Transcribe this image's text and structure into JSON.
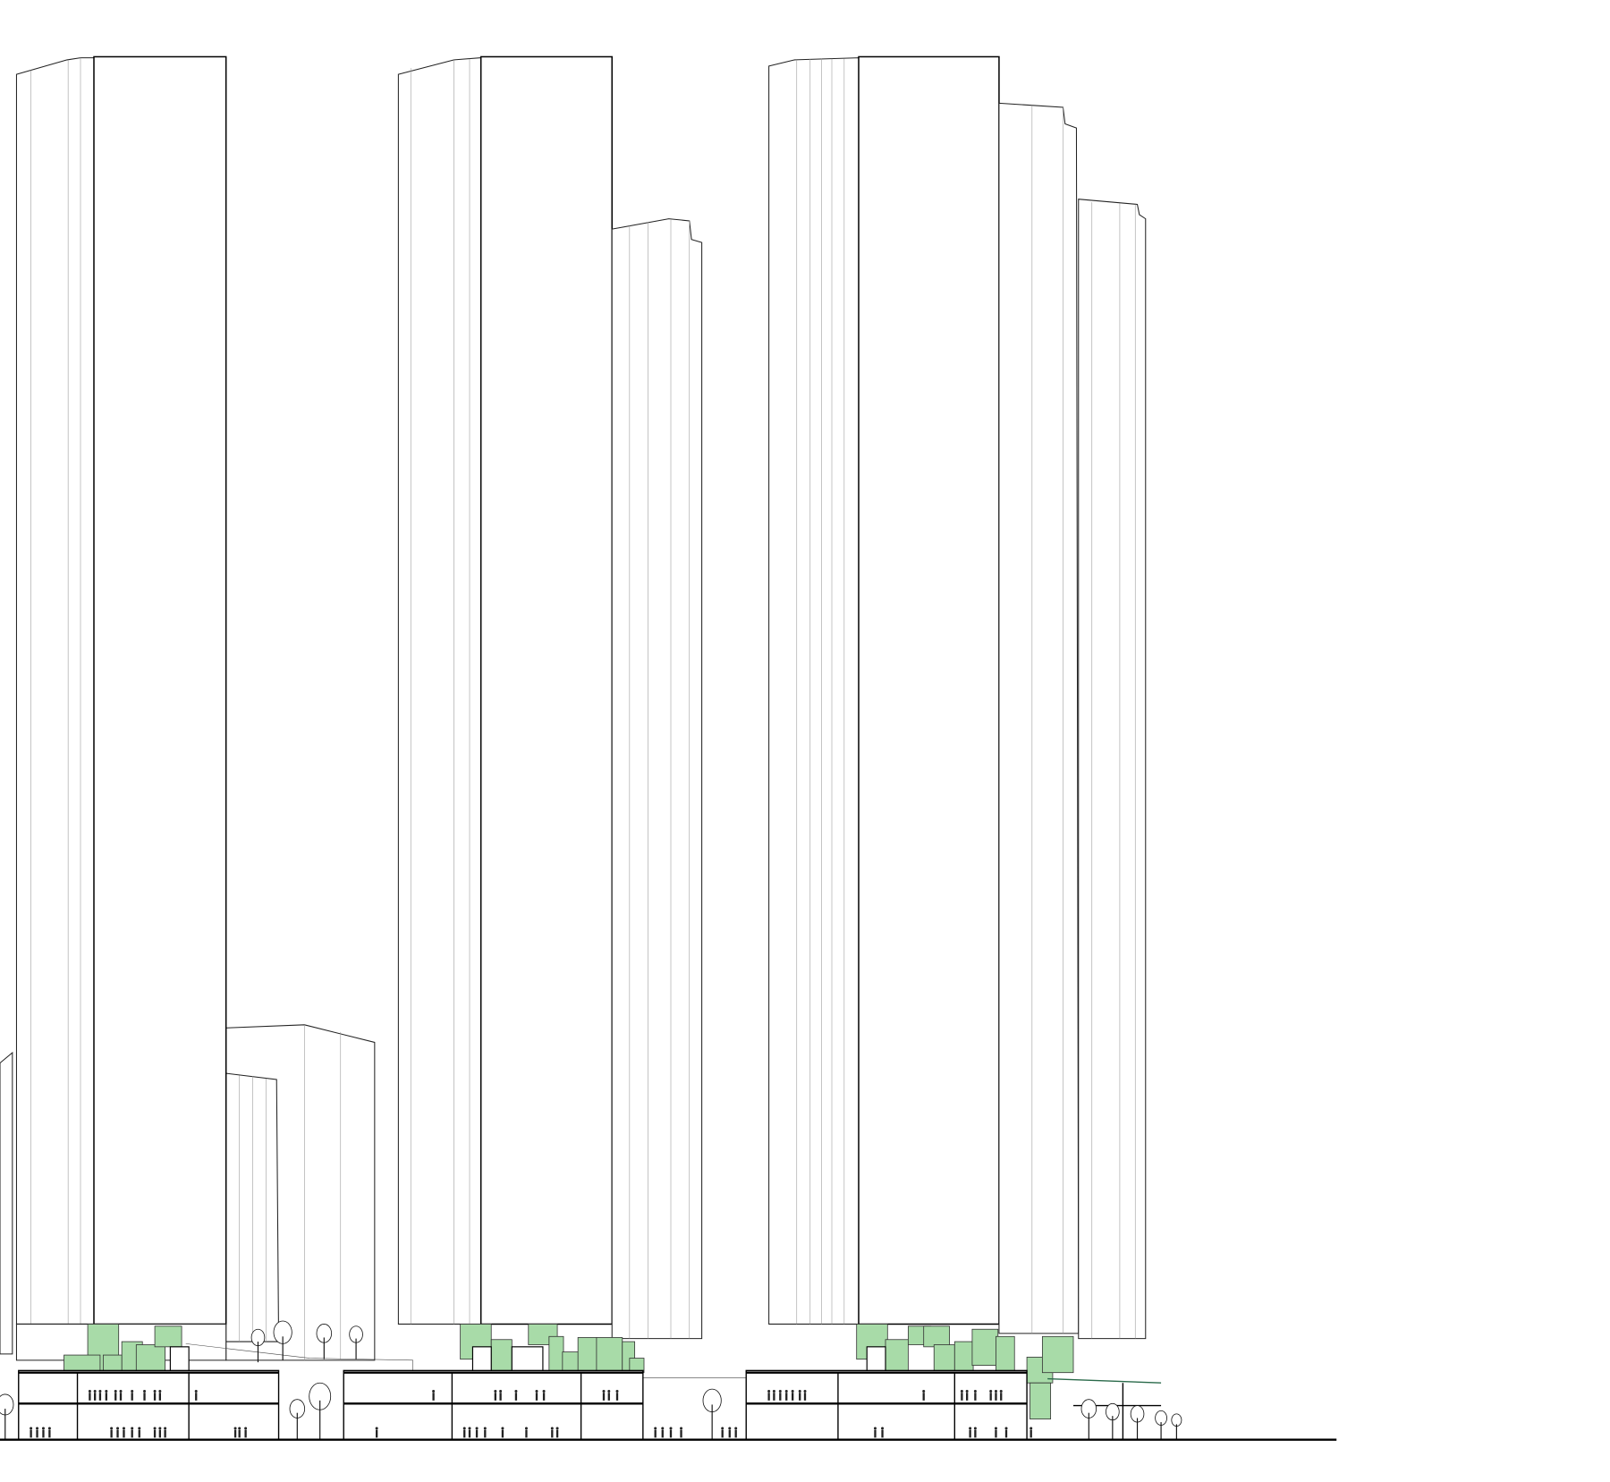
{
  "drawing": {
    "type": "architectural-elevation",
    "colors": {
      "line": "#000000",
      "greenery": "#a8dba8",
      "background": "#ffffff"
    }
  }
}
